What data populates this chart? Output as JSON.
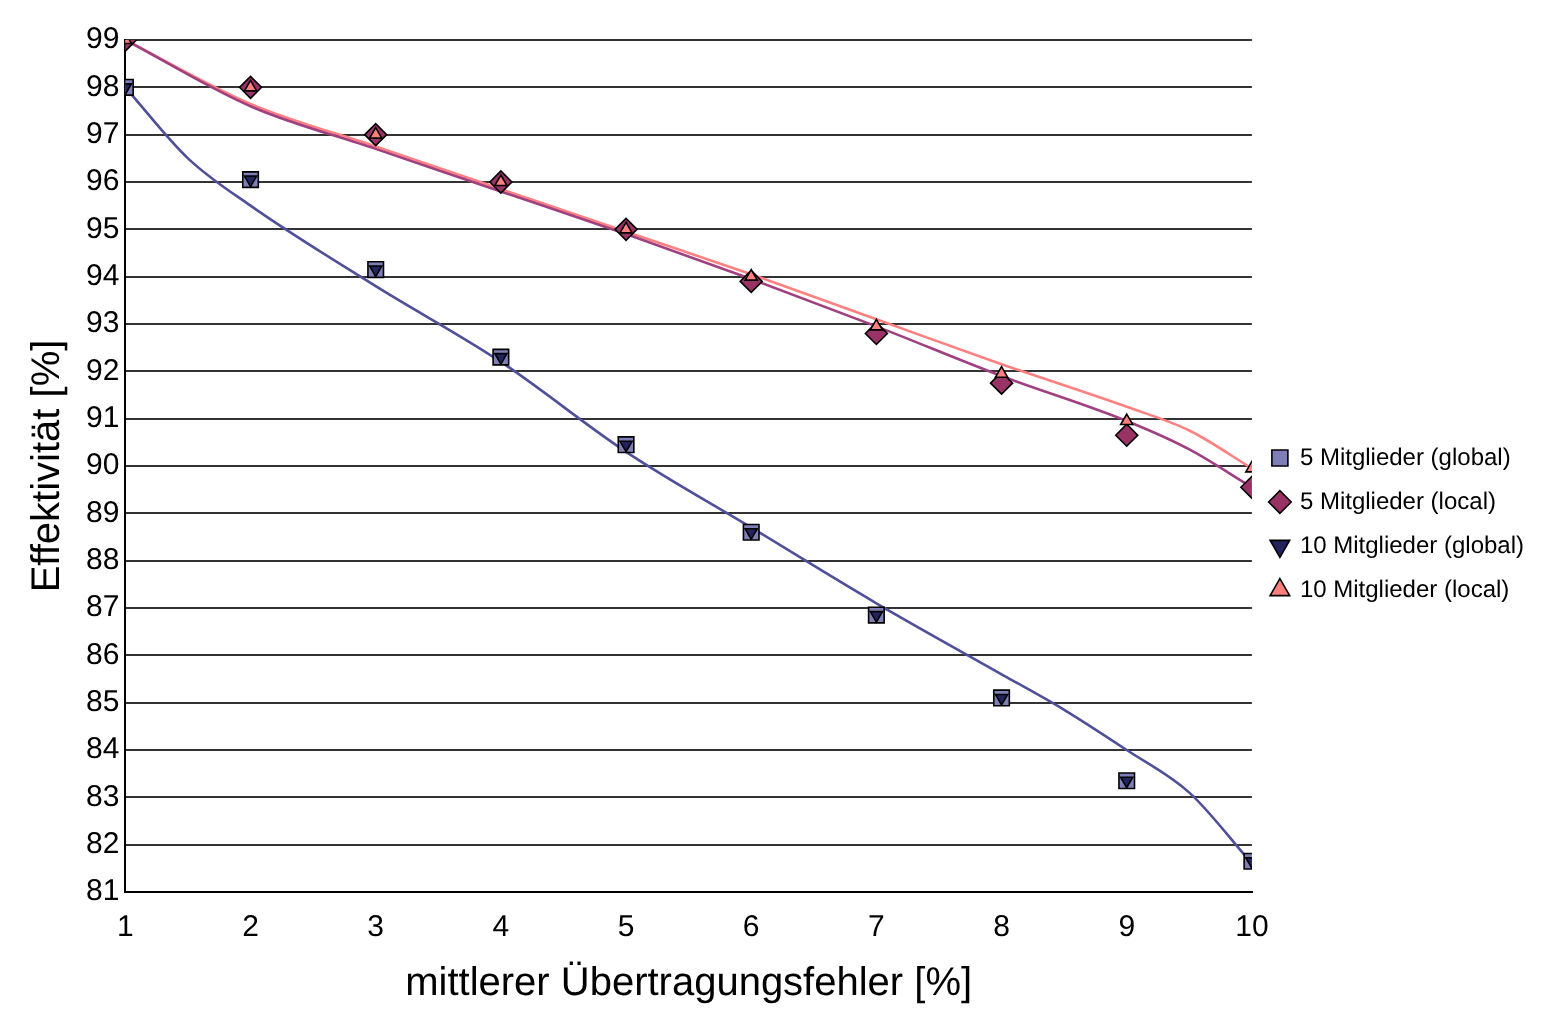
{
  "chart_data": {
    "type": "scatter",
    "xlabel": "mittlerer Übertragungsfehler [%]",
    "ylabel": "Effektivität [%]",
    "x": [
      1,
      2,
      3,
      4,
      5,
      6,
      7,
      8,
      9,
      10
    ],
    "xlim": [
      1,
      10
    ],
    "xticks": [
      1,
      2,
      3,
      4,
      5,
      6,
      7,
      8,
      9,
      10
    ],
    "ylim": [
      81,
      99
    ],
    "yticks": [
      81,
      82,
      83,
      84,
      85,
      86,
      87,
      88,
      89,
      90,
      91,
      92,
      93,
      94,
      95,
      96,
      97,
      98,
      99
    ],
    "grid": "y",
    "legend": "right",
    "series": [
      {
        "name": "5 Mitglieder (global)",
        "color": "#7f7fb8",
        "marker": "square",
        "values": [
          98,
          96.05,
          94.15,
          92.3,
          90.45,
          88.6,
          86.85,
          85.1,
          83.35,
          81.65
        ]
      },
      {
        "name": "5 Mitglieder (local)",
        "color": "#993366",
        "marker": "diamond",
        "values": [
          99,
          98,
          97,
          96,
          95,
          93.9,
          92.8,
          91.75,
          90.65,
          89.55
        ]
      },
      {
        "name": "10 Mitglieder (global)",
        "color": "#23235e",
        "marker": "triangle-down",
        "values": [
          98,
          96.05,
          94.15,
          92.3,
          90.45,
          88.6,
          86.85,
          85.1,
          83.35,
          81.65
        ]
      },
      {
        "name": "10 Mitglieder (local)",
        "color": "#ff7f7f",
        "marker": "triangle",
        "values": [
          99,
          98,
          97,
          96,
          95,
          94,
          92.95,
          91.95,
          90.95,
          89.95
        ]
      },
      {
        "type": "line",
        "color": "#4f4f9a",
        "marker": "none",
        "x": [
          1,
          1.5,
          2,
          3,
          4,
          5,
          6,
          7,
          8,
          8.5,
          9,
          9.5,
          10
        ],
        "values": [
          98,
          96.5,
          95.5,
          93.8,
          92.2,
          90.3,
          88.7,
          87.1,
          85.6,
          84.85,
          84,
          83.1,
          81.6
        ]
      },
      {
        "type": "line",
        "color": "#a04080",
        "marker": "none",
        "x": [
          1,
          2,
          3,
          4,
          5,
          6,
          7,
          8,
          9,
          9.5,
          10
        ],
        "values": [
          99,
          97.6,
          96.7,
          95.8,
          94.9,
          93.95,
          92.95,
          91.9,
          90.95,
          90.35,
          89.55
        ]
      },
      {
        "type": "line",
        "color": "#ff8080",
        "marker": "none",
        "x": [
          1,
          2,
          3,
          4,
          5,
          6,
          7,
          8,
          9,
          9.5,
          10
        ],
        "values": [
          99,
          97.65,
          96.75,
          95.85,
          94.95,
          94.05,
          93.1,
          92.15,
          91.25,
          90.75,
          89.95
        ]
      }
    ]
  }
}
